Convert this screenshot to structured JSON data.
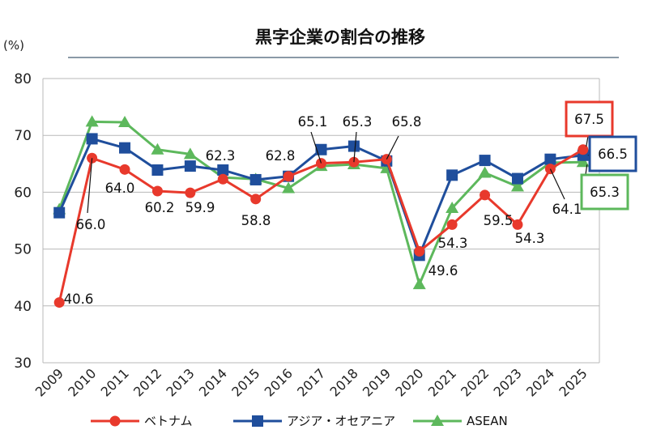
{
  "chart_data": {
    "type": "line",
    "title": "黒字企業の割合の推移",
    "ylabel": "(%)",
    "xlabel": "",
    "ylim": [
      30,
      80
    ],
    "yticks": [
      30,
      40,
      50,
      60,
      70,
      80
    ],
    "categories": [
      "2009",
      "2010",
      "2011",
      "2012",
      "2013",
      "2014",
      "2015",
      "2016",
      "2017",
      "2018",
      "2019",
      "2020",
      "2021",
      "2022",
      "2023",
      "2024",
      "2025"
    ],
    "grid": true,
    "legend_position": "bottom",
    "series": [
      {
        "name": "ベトナム",
        "color": "#e8392c",
        "marker": "circle",
        "values": [
          40.6,
          66.0,
          64.0,
          60.2,
          59.9,
          62.3,
          58.8,
          62.8,
          65.1,
          65.3,
          65.8,
          49.6,
          54.3,
          59.5,
          54.3,
          64.1,
          67.5
        ]
      },
      {
        "name": "アジア・オセアニア",
        "color": "#1f4e9c",
        "marker": "square",
        "values": [
          56.4,
          69.4,
          67.8,
          63.9,
          64.6,
          63.9,
          62.2,
          62.8,
          67.5,
          68.1,
          65.5,
          48.9,
          63.0,
          65.6,
          62.4,
          65.8,
          66.5
        ]
      },
      {
        "name": "ASEAN",
        "color": "#5db85c",
        "marker": "triangle",
        "values": [
          57.0,
          72.4,
          72.3,
          67.5,
          66.7,
          62.6,
          62.3,
          60.7,
          64.6,
          64.9,
          64.2,
          43.8,
          57.2,
          63.4,
          61.0,
          65.2,
          65.3
        ]
      }
    ],
    "data_labels": [
      "40.6",
      "66.0",
      "64.0",
      "60.2",
      "59.9",
      "62.3",
      "58.8",
      "62.8",
      "65.1",
      "65.3",
      "65.8",
      "49.6",
      "54.3",
      "59.5",
      "54.3",
      "64.1"
    ],
    "boxed_labels": [
      {
        "text": "67.5",
        "color": "#e8392c"
      },
      {
        "text": "66.5",
        "color": "#1f4e9c"
      },
      {
        "text": "65.3",
        "color": "#5db85c"
      }
    ]
  }
}
